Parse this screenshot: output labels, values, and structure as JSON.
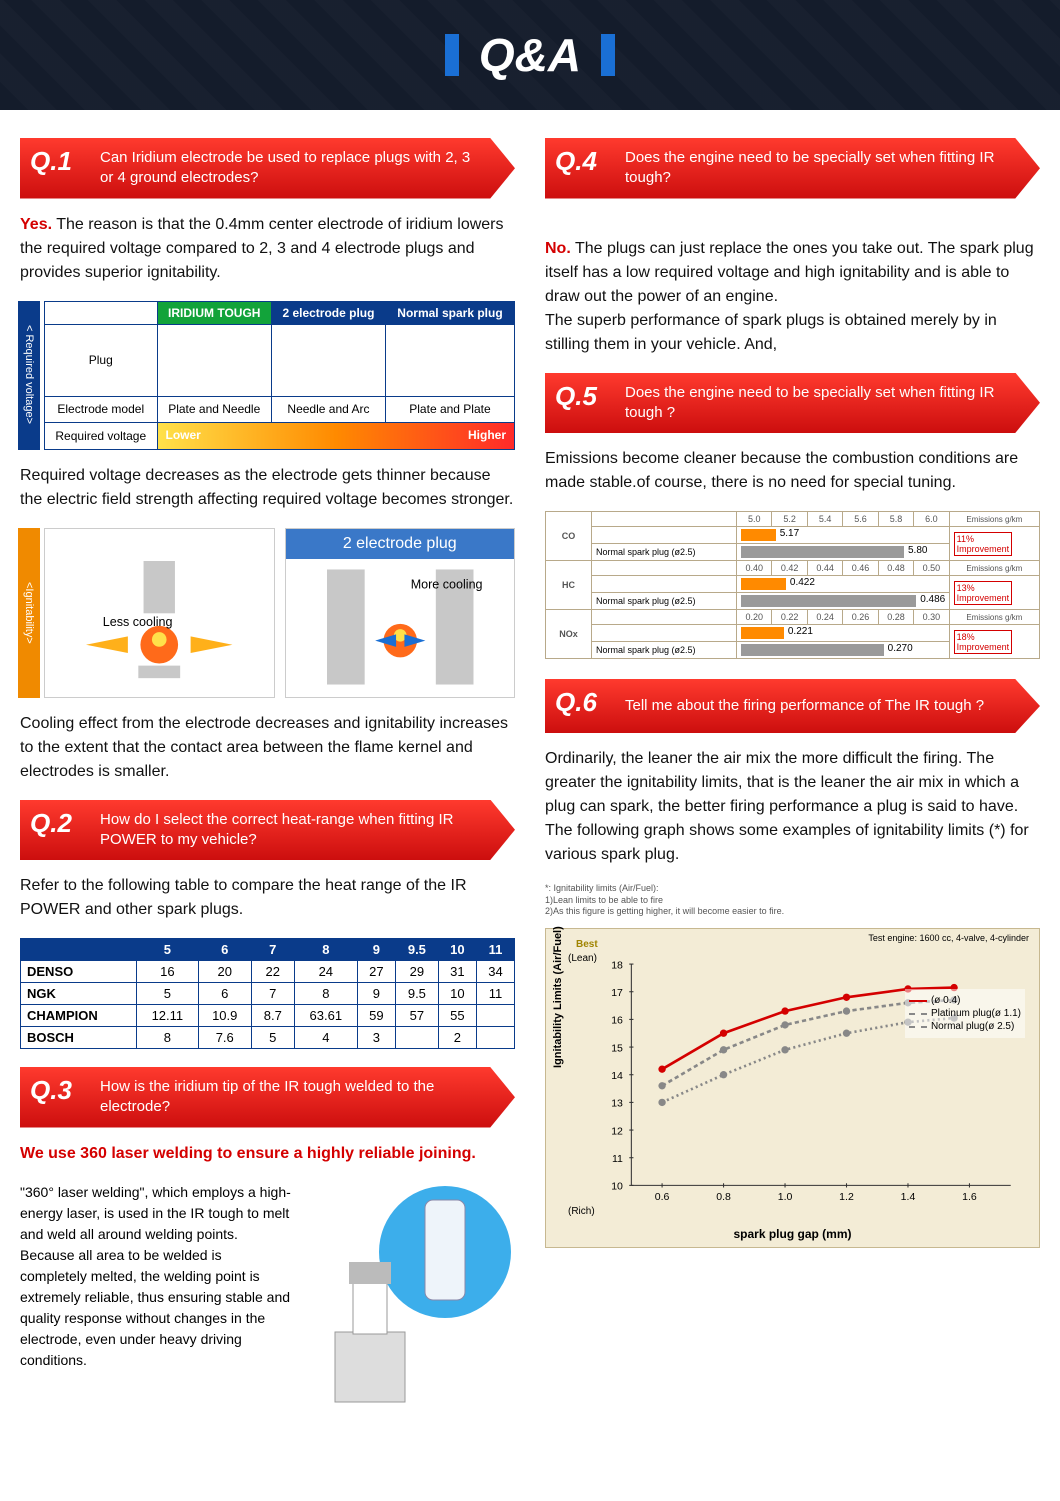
{
  "hero_title": "Q&A",
  "q1": {
    "num": "Q.1",
    "question": "Can Iridium electrode be used to replace plugs with 2, 3 or 4 ground electrodes?",
    "ans_lead": "Yes.",
    "ans_body": " The reason is that the 0.4mm center electrode of iridium lowers the required voltage compared to 2, 3 and 4 electrode plugs and provides superior ignitability.",
    "para2": "Required voltage decreases as the electrode gets thinner because the electric field strength affecting required voltage becomes stronger.",
    "para3": "Cooling effect from the electrode decreases and ignitability increases to the extent that the contact area between the flame kernel and electrodes is smaller.",
    "side1": "< Required voltage>",
    "side2": "<Ignitability>",
    "volt_head": [
      "",
      "IRIDIUM TOUGH",
      "2 electrode plug",
      "Normal spark plug"
    ],
    "volt_rows": [
      "Plug",
      "Electrode model",
      "Required voltage"
    ],
    "em_labels": [
      "Plate and Needle",
      "Needle and Arc",
      "Plate and Plate"
    ],
    "arrow_l": "Lower",
    "arrow_r": "Higher",
    "ign_title": "2 electrode plug",
    "ign_less": "Less cooling",
    "ign_more": "More cooling"
  },
  "q2": {
    "num": "Q.2",
    "question": "How do I select the correct heat-range when fitting IR POWER to my vehicle?",
    "ans": "Refer to the following table to compare the heat range of the IR POWER and other spark plugs.",
    "head": [
      "",
      "5",
      "6",
      "7",
      "8",
      "9",
      "9.5",
      "10",
      "11"
    ],
    "rows": [
      [
        "DENSO",
        "16",
        "20",
        "22",
        "24",
        "27",
        "29",
        "31",
        "34"
      ],
      [
        "NGK",
        "5",
        "6",
        "7",
        "8",
        "9",
        "9.5",
        "10",
        "11"
      ],
      [
        "CHAMPION",
        "12.11",
        "10.9",
        "8.7",
        "63.61",
        "59",
        "57",
        "55",
        ""
      ],
      [
        "BOSCH",
        "8",
        "7.6",
        "5",
        "4",
        "3",
        "",
        "2",
        ""
      ]
    ]
  },
  "q3": {
    "num": "Q.3",
    "question": "How is the iridium tip of the IR tough welded to the electrode?",
    "lead": "We use 360 laser welding to ensure a highly reliable joining.",
    "body": "\"360° laser welding\", which employs a high-energy laser, is used in the IR tough to melt and weld all around welding points. Because all area to be welded is completely melted, the welding point is extremely reliable, thus ensuring stable and quality response without changes in the electrode, even under heavy driving conditions."
  },
  "q4": {
    "num": "Q.4",
    "question": "Does the engine need to be specially set when fitting IR tough?",
    "ans_lead": "No.",
    "ans_body": " The plugs can just replace the ones you take out. The                   spark plug itself has a low required voltage and high ignitability and is able to draw out the power of an engine.\nThe superb performance of                        spark plugs is obtained merely by in stilling them in your vehicle. And,"
  },
  "q5": {
    "num": "Q.5",
    "question": "Does the engine need to be specially set when fitting IR tough ?",
    "ans": "Emissions become cleaner because the combustion conditions are made stable.of course, there is no need for special tuning.",
    "metrics": [
      {
        "label": "CO",
        "scale": [
          "5.0",
          "5.2",
          "5.4",
          "5.6",
          "5.8",
          "6.0"
        ],
        "top_val": "5.17",
        "top_pct": 17,
        "bot_label": "Normal spark plug (ø2.5)",
        "bot_val": "5.80",
        "bot_pct": 80,
        "imp": "11%"
      },
      {
        "label": "HC",
        "scale": [
          "0.40",
          "0.42",
          "0.44",
          "0.46",
          "0.48",
          "0.50"
        ],
        "top_val": "0.422",
        "top_pct": 22,
        "bot_label": "Normal spark plug (ø2.5)",
        "bot_val": "0.486",
        "bot_pct": 86,
        "imp": "13%"
      },
      {
        "label": "NOx",
        "scale": [
          "0.20",
          "0.22",
          "0.24",
          "0.26",
          "0.28",
          "0.30"
        ],
        "top_val": "0.221",
        "top_pct": 21,
        "bot_label": "Normal spark plug (ø2.5)",
        "bot_val": "0.270",
        "bot_pct": 70,
        "imp": "18%"
      }
    ],
    "unit": "Emissions g/km",
    "imp_word": "Improvement"
  },
  "q6": {
    "num": "Q.6",
    "question": "Tell me about the firing performance of The IR tough ?",
    "ans": "Ordinarily, the leaner the air mix the more difficult the firing. The greater the ignitability limits, that is the leaner the air mix in which a plug can spark, the better firing performance a plug is said to have. The following graph shows some examples of ignitability limits (*) for various spark plug.",
    "note1": "*: Ignitability limits (Air/Fuel):",
    "note2": "1)Lean limits to be able to fire",
    "note3": "2)As this figure is getting higher, it will become easier to fire.",
    "test": "Test engine: 1600 cc, 4-valve, 4-cylinder",
    "ylab": "Ignitability Limits (Air/Fuel)",
    "xlab": "spark plug gap   (mm)",
    "ylean": "(Lean)",
    "yrich": "(Rich)",
    "best": "Best",
    "yticks": [
      10,
      11,
      12,
      13,
      14,
      15,
      16,
      17,
      18
    ],
    "xticks": [
      "0.6",
      "0.8",
      "1.0",
      "1.2",
      "1.4",
      "1.6"
    ],
    "series": [
      {
        "name": "(ø 0.4)",
        "color": "#d40000",
        "dash": "",
        "pts": [
          [
            0.6,
            14.2
          ],
          [
            0.8,
            15.5
          ],
          [
            1.0,
            16.3
          ],
          [
            1.2,
            16.8
          ],
          [
            1.4,
            17.1
          ],
          [
            1.55,
            17.15
          ]
        ]
      },
      {
        "name": "Platinum plug(ø 1.1)",
        "color": "#888",
        "dash": "4 3",
        "pts": [
          [
            0.6,
            13.6
          ],
          [
            0.8,
            14.9
          ],
          [
            1.0,
            15.8
          ],
          [
            1.2,
            16.3
          ],
          [
            1.4,
            16.6
          ],
          [
            1.55,
            16.7
          ]
        ]
      },
      {
        "name": "Normal plug(ø 2.5)",
        "color": "#888",
        "dash": "2 3",
        "pts": [
          [
            0.6,
            13.0
          ],
          [
            0.8,
            14.0
          ],
          [
            1.0,
            14.9
          ],
          [
            1.2,
            15.5
          ],
          [
            1.4,
            15.9
          ],
          [
            1.55,
            16.05
          ]
        ]
      }
    ]
  },
  "colors": {
    "orange": "#ff8a00",
    "gray": "#9a9a9a"
  }
}
